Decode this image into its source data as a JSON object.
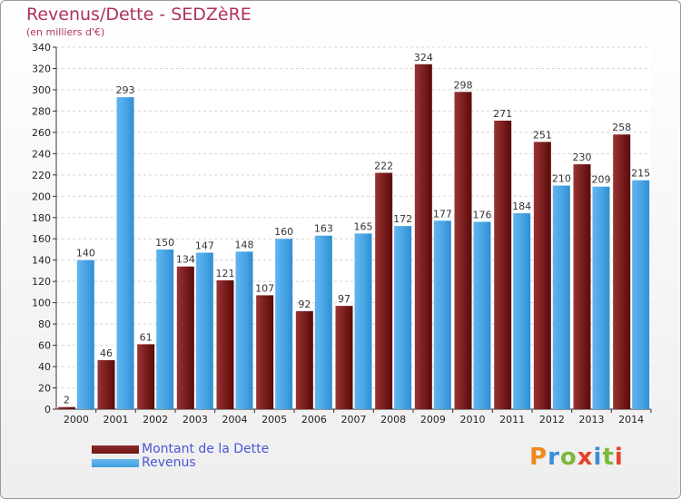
{
  "title": "Revenus/Dette - SEDZèRE",
  "subtitle": "(en milliers d'€)",
  "brand": "Proxiti",
  "colors": {
    "dette": "#6e1414",
    "revenus": "#3d9ee0",
    "title": "#b03060",
    "legend_text": "#4a56d8"
  },
  "chart_data": {
    "type": "bar",
    "categories": [
      "2000",
      "2001",
      "2002",
      "2003",
      "2004",
      "2005",
      "2006",
      "2007",
      "2008",
      "2009",
      "2010",
      "2011",
      "2012",
      "2013",
      "2014"
    ],
    "series": [
      {
        "name": "Montant de la Dette",
        "values": [
          2,
          46,
          61,
          134,
          121,
          107,
          92,
          97,
          222,
          324,
          298,
          271,
          251,
          230,
          258
        ]
      },
      {
        "name": "Revenus",
        "values": [
          140,
          293,
          150,
          147,
          148,
          160,
          163,
          165,
          172,
          177,
          176,
          184,
          210,
          209,
          215
        ]
      }
    ],
    "ylim": [
      0,
      340
    ],
    "yticks": [
      0,
      20,
      40,
      60,
      80,
      100,
      120,
      140,
      160,
      180,
      200,
      220,
      240,
      260,
      280,
      300,
      320,
      340
    ],
    "grid": true,
    "legend_position": "bottom-left"
  }
}
